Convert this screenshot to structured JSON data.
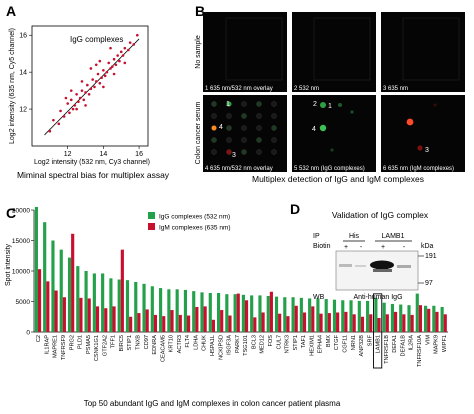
{
  "panels": {
    "a": {
      "letter": "A",
      "inset_title": "IgG complexes",
      "caption": "Miminal spectral bias for multiplex assay"
    },
    "b": {
      "letter": "B",
      "row_label_top": "No sample",
      "row_label_bottom": "Colon cancer serum",
      "captions": [
        "1   635 nm/532 nm overlay",
        "2   532 nm",
        "3   635 nm",
        "4   635 nm/532 nm overlay",
        "5   532 nm (IgG complexes)",
        "6   635 nm (IgM complexes)"
      ],
      "spot_labels": [
        "1",
        "2",
        "4",
        "1",
        "4",
        "3",
        "3"
      ],
      "title": "Multiplex detection of IgG and IgM complexes"
    },
    "c": {
      "letter": "C",
      "caption": "Top 50 abundant IgG and IgM complexes in colon cancer patient plasma"
    },
    "d": {
      "letter": "D",
      "title": "Validation of IgG complex",
      "ip_label": "IP",
      "biotin_label": "Biotin",
      "ip_groups": [
        "His",
        "LAMB1"
      ],
      "biotin_signs": [
        "+",
        "-",
        "+",
        "-"
      ],
      "kda_label": "kDa",
      "markers": [
        "191",
        "97"
      ],
      "wb_label": "WB",
      "wb_antibody": "Anti-human IgG"
    }
  },
  "chart_data": [
    {
      "type": "scatter",
      "title": "",
      "xlabel": "Log2 intensity (532 nm, Cy3 channel)",
      "ylabel": "Log2 intensity (635 nm, Cy5 channel)",
      "xlim": [
        10,
        16.5
      ],
      "ylim": [
        10,
        16.5
      ],
      "xticks": [
        "12",
        "14",
        "16"
      ],
      "yticks": [
        "12",
        "14",
        "16"
      ],
      "color": "#c8102e",
      "points": [
        [
          11.0,
          10.8
        ],
        [
          11.2,
          11.4
        ],
        [
          11.5,
          11.2
        ],
        [
          11.6,
          11.9
        ],
        [
          11.8,
          11.6
        ],
        [
          12.0,
          12.3
        ],
        [
          12.1,
          11.8
        ],
        [
          12.2,
          12.5
        ],
        [
          12.3,
          12.0
        ],
        [
          12.4,
          12.2
        ],
        [
          12.5,
          12.8
        ],
        [
          12.6,
          12.4
        ],
        [
          12.7,
          12.6
        ],
        [
          12.8,
          13.0
        ],
        [
          12.9,
          12.5
        ],
        [
          13.0,
          12.9
        ],
        [
          13.1,
          13.3
        ],
        [
          13.2,
          12.8
        ],
        [
          13.3,
          13.1
        ],
        [
          13.4,
          13.6
        ],
        [
          13.5,
          13.2
        ],
        [
          13.6,
          13.5
        ],
        [
          13.7,
          13.9
        ],
        [
          13.8,
          13.4
        ],
        [
          13.9,
          13.7
        ],
        [
          14.0,
          14.1
        ],
        [
          14.1,
          13.8
        ],
        [
          14.2,
          14.0
        ],
        [
          14.3,
          14.5
        ],
        [
          14.4,
          14.2
        ],
        [
          14.5,
          14.3
        ],
        [
          14.6,
          14.7
        ],
        [
          14.7,
          14.4
        ],
        [
          14.8,
          14.9
        ],
        [
          14.9,
          14.6
        ],
        [
          15.0,
          15.1
        ],
        [
          15.1,
          14.9
        ],
        [
          15.2,
          15.3
        ],
        [
          15.4,
          15.2
        ],
        [
          15.5,
          15.6
        ],
        [
          15.7,
          15.5
        ],
        [
          15.9,
          16.0
        ],
        [
          12.2,
          13.0
        ],
        [
          13.6,
          14.4
        ],
        [
          14.4,
          15.3
        ],
        [
          13.0,
          12.2
        ],
        [
          14.0,
          13.2
        ],
        [
          12.8,
          13.5
        ],
        [
          11.9,
          12.6
        ],
        [
          15.2,
          14.5
        ],
        [
          13.3,
          14.2
        ],
        [
          14.6,
          13.9
        ],
        [
          12.5,
          12.0
        ],
        [
          13.8,
          14.6
        ]
      ],
      "fit_line": [
        [
          10.7,
          10.6
        ],
        [
          16.0,
          15.8
        ]
      ]
    },
    {
      "type": "bar",
      "title": "",
      "xlabel": "",
      "ylabel": "Spot intensity",
      "ylim": [
        0,
        20000
      ],
      "yticks": [
        "0",
        "5000",
        "10000",
        "15000",
        "20000"
      ],
      "legend_position": "top-right",
      "categories": [
        "C2",
        "IL1RAP",
        "MAPRE1",
        "TNFRSF9",
        "PRG2",
        "PLD1",
        "PSMA5",
        "CSNK1G1",
        "GTF2A2",
        "TFF1",
        "BIRC5",
        "STIP1",
        "TNXB",
        "CD97",
        "EDNRA",
        "CEACAM5",
        "KRT10",
        "ACTR3",
        "FLT4",
        "LDHA",
        "CHUK",
        "HSPA1L",
        "NCKIPSD",
        "ISGF3A",
        "PARK7",
        "TSG101",
        "BCL3",
        "MED12",
        "FOS",
        "CUL7",
        "NTRK3",
        "STIP1",
        "TAF1",
        "HEXIM1",
        "EPHA4",
        "BMX",
        "CTGF",
        "CGF11",
        "NRN1",
        "ANP32B",
        "SRF",
        "LAMB1",
        "TNFRSF1B",
        "DEFA1",
        "DEFA1B",
        "IL2RA",
        "TNFRSF10A",
        "VIM",
        "MAPK9",
        "WIPF1"
      ],
      "series": [
        {
          "name": "IgG complexes (532 nm)",
          "color": "#23a04a",
          "values": [
            20500,
            18000,
            15000,
            13500,
            12200,
            10800,
            10000,
            9600,
            9600,
            8800,
            8600,
            8500,
            8200,
            7900,
            7500,
            7200,
            7000,
            7000,
            6900,
            6700,
            6500,
            6400,
            6400,
            6200,
            6200,
            6100,
            6000,
            6000,
            5900,
            5800,
            5700,
            5700,
            5600,
            5500,
            5500,
            5400,
            5300,
            5200,
            5200,
            5100,
            5100,
            5600,
            4800,
            4600,
            4500,
            4400,
            6300,
            4300,
            4300,
            4100
          ]
        },
        {
          "name": "IgM complexes (635 nm)",
          "color": "#c8102e",
          "values": [
            10300,
            8300,
            6800,
            5700,
            16100,
            5600,
            5500,
            4200,
            3900,
            4200,
            13500,
            2500,
            3100,
            3700,
            2800,
            2600,
            3600,
            2800,
            2700,
            4100,
            4200,
            2000,
            3600,
            2700,
            6300,
            5200,
            2400,
            3200,
            6600,
            3000,
            2600,
            4300,
            3200,
            4200,
            3000,
            3100,
            3200,
            3300,
            2900,
            2500,
            2900,
            2300,
            2900,
            3300,
            2900,
            2800,
            4400,
            3800,
            3300,
            2900
          ]
        }
      ]
    }
  ]
}
